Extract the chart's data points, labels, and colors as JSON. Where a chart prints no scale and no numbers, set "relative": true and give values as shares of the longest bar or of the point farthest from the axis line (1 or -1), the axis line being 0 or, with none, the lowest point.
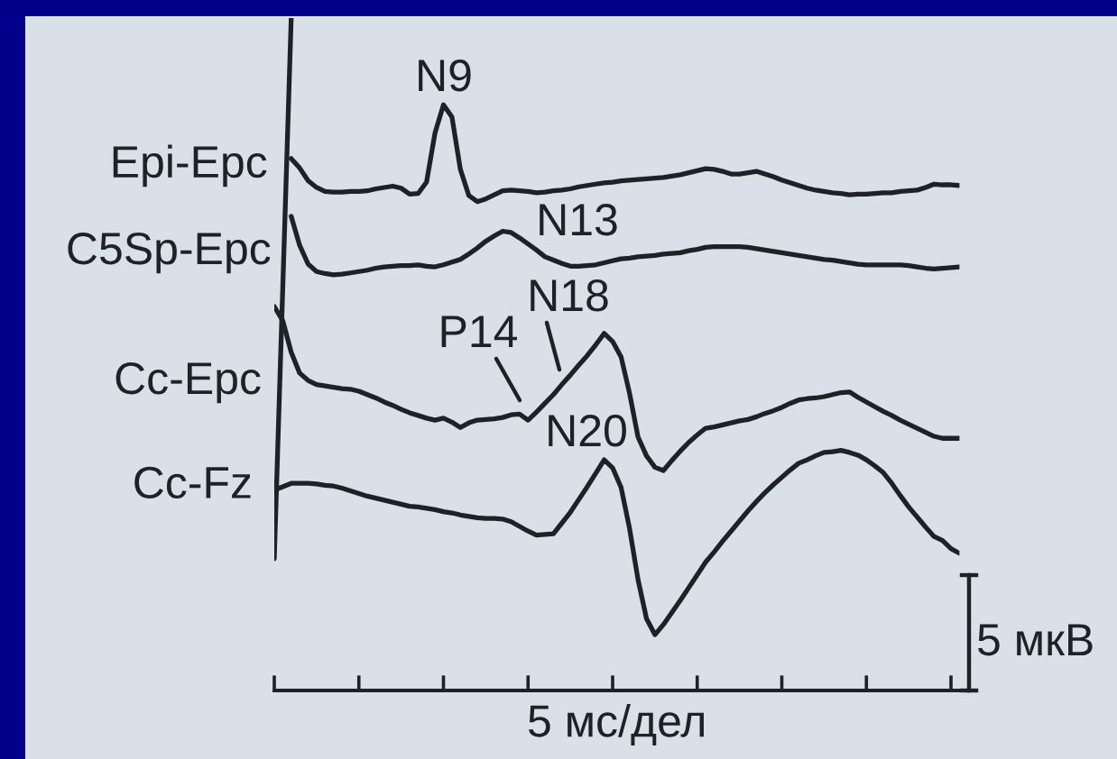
{
  "chart_data": {
    "type": "line",
    "relative": true,
    "xlabel": "5 мс/дел",
    "categories": [
      null,
      null,
      null,
      null,
      null,
      null,
      null,
      null,
      null,
      null,
      null,
      null,
      null,
      null,
      null,
      null,
      null,
      null,
      null,
      null,
      null,
      null,
      null,
      null,
      null,
      null,
      null,
      null,
      null,
      null,
      null,
      null,
      null,
      null,
      null,
      null,
      null,
      null,
      null,
      null,
      null,
      null,
      null,
      null,
      null,
      null,
      null,
      null,
      null,
      null,
      null,
      null,
      null,
      null,
      null,
      null,
      null,
      null,
      null,
      null,
      null,
      null,
      null,
      null,
      null,
      null,
      null,
      null,
      null,
      null,
      null,
      null,
      null,
      null,
      null,
      null,
      null,
      null,
      null,
      null,
      null,
      null
    ],
    "series": [
      {
        "name": "Epi-Epc",
        "color": "#1e2226",
        "values": [
          null,
          null,
          0.791,
          0.777,
          0.758,
          0.748,
          0.742,
          0.741,
          0.741,
          0.742,
          0.742,
          0.743,
          0.746,
          0.748,
          0.75,
          0.747,
          0.738,
          0.739,
          0.756,
          0.829,
          0.871,
          0.853,
          0.775,
          0.736,
          0.727,
          0.731,
          0.737,
          0.743,
          0.744,
          0.743,
          0.742,
          0.74,
          0.741,
          0.743,
          0.744,
          0.746,
          0.749,
          0.751,
          0.753,
          0.755,
          0.756,
          0.758,
          0.759,
          0.76,
          0.761,
          0.762,
          0.763,
          0.765,
          0.767,
          0.77,
          0.773,
          0.776,
          0.775,
          0.772,
          0.768,
          0.768,
          0.77,
          0.772,
          0.768,
          0.764,
          0.759,
          0.755,
          0.751,
          0.747,
          0.744,
          0.742,
          0.74,
          0.739,
          0.737,
          0.738,
          0.738,
          0.739,
          0.74,
          0.74,
          0.742,
          0.743,
          0.744,
          0.748,
          0.753,
          0.752,
          0.752,
          0.751
        ]
      },
      {
        "name": "C5Sp-Epc",
        "color": "#1e2226",
        "values": [
          null,
          null,
          0.705,
          0.662,
          0.634,
          0.623,
          0.62,
          0.618,
          0.619,
          0.621,
          0.623,
          0.625,
          0.628,
          0.63,
          0.631,
          0.632,
          0.632,
          0.633,
          0.631,
          0.63,
          0.633,
          0.637,
          0.641,
          0.649,
          0.658,
          0.668,
          0.676,
          0.683,
          0.681,
          0.673,
          0.664,
          0.655,
          0.645,
          0.64,
          0.635,
          0.631,
          0.631,
          0.632,
          0.633,
          0.636,
          0.639,
          0.642,
          0.643,
          0.645,
          0.646,
          0.647,
          0.649,
          0.65,
          0.651,
          0.654,
          0.656,
          0.659,
          0.66,
          0.66,
          0.66,
          0.66,
          0.659,
          0.657,
          0.655,
          0.653,
          0.651,
          0.649,
          0.647,
          0.645,
          0.643,
          0.641,
          0.64,
          0.638,
          0.636,
          0.634,
          0.633,
          0.633,
          0.633,
          0.633,
          0.633,
          0.632,
          0.63,
          0.628,
          0.627,
          0.628,
          0.629,
          0.63
        ]
      },
      {
        "name": "Cc-Epc",
        "color": "#1e2226",
        "values": [
          0.571,
          0.55,
          0.503,
          0.472,
          0.461,
          0.455,
          0.453,
          0.451,
          0.449,
          0.448,
          0.445,
          0.44,
          0.435,
          0.429,
          0.424,
          0.418,
          0.413,
          0.409,
          0.405,
          0.402,
          0.405,
          0.399,
          0.391,
          0.398,
          0.402,
          0.403,
          0.404,
          0.406,
          0.41,
          0.411,
          0.402,
          0.414,
          0.427,
          0.44,
          0.455,
          0.469,
          0.484,
          0.498,
          0.514,
          0.531,
          0.519,
          0.496,
          0.442,
          0.377,
          0.349,
          0.332,
          0.327,
          0.342,
          0.356,
          0.369,
          0.38,
          0.39,
          0.392,
          0.395,
          0.398,
          0.401,
          0.403,
          0.407,
          0.412,
          0.416,
          0.421,
          0.427,
          0.432,
          0.434,
          0.435,
          0.437,
          0.44,
          0.443,
          0.444,
          0.436,
          0.429,
          0.422,
          0.415,
          0.409,
          0.402,
          0.396,
          0.39,
          0.384,
          0.378,
          0.375,
          0.375,
          0.375
        ]
      },
      {
        "name": "Cc-Fz",
        "color": "#1e2226",
        "values": [
          0.298,
          0.303,
          0.308,
          0.308,
          0.308,
          0.307,
          0.305,
          0.304,
          0.301,
          0.297,
          0.293,
          0.289,
          0.286,
          0.283,
          0.28,
          0.277,
          0.274,
          0.273,
          0.271,
          0.269,
          0.266,
          0.264,
          0.261,
          0.259,
          0.257,
          0.256,
          0.256,
          0.255,
          0.251,
          0.244,
          0.237,
          0.231,
          0.232,
          0.233,
          0.249,
          0.265,
          0.284,
          0.303,
          0.323,
          0.343,
          0.331,
          0.302,
          0.241,
          0.165,
          0.107,
          0.083,
          0.098,
          0.116,
          0.134,
          0.153,
          0.172,
          0.191,
          0.206,
          0.222,
          0.237,
          0.252,
          0.267,
          0.281,
          0.294,
          0.306,
          0.317,
          0.328,
          0.338,
          0.343,
          0.349,
          0.354,
          0.355,
          0.357,
          0.354,
          0.35,
          0.343,
          0.334,
          0.324,
          0.308,
          0.29,
          0.273,
          0.258,
          0.243,
          0.229,
          0.223,
          0.211,
          0.204
        ]
      },
      {
        "color": "#1e2226",
        "values": [
          0.196,
          0.598,
          1.0,
          null,
          null,
          null,
          null,
          null,
          null,
          null,
          null,
          null,
          null,
          null,
          null,
          null,
          null,
          null,
          null,
          null,
          null,
          null,
          null,
          null,
          null,
          null,
          null,
          null,
          null,
          null,
          null,
          null,
          null,
          null,
          null,
          null,
          null,
          null,
          null,
          null,
          null,
          null,
          null,
          null,
          null,
          null,
          null,
          null,
          null,
          null,
          null,
          null,
          null,
          null,
          null,
          null,
          null,
          null,
          null,
          null,
          null,
          null,
          null,
          null,
          null,
          null,
          null,
          null,
          null,
          null,
          null,
          null,
          null,
          null,
          null,
          null,
          null,
          null,
          null,
          null,
          null,
          null
        ]
      }
    ],
    "annotations": [
      "N9",
      "N13",
      "P14",
      "N18",
      "N20",
      "5 мкВ"
    ]
  }
}
